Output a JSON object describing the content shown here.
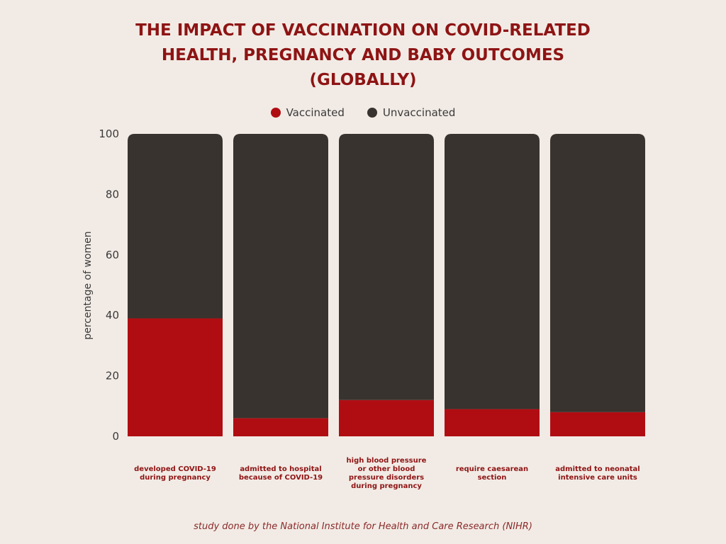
{
  "title_lines": [
    "THE IMPACT OF VACCINATION ON COVID-RELATED",
    "HEALTH, PREGNANCY AND BABY OUTCOMES",
    "(GLOBALLY)"
  ],
  "footnote": "study done by the National Institute for Health and Care Research (NIHR)",
  "colors": {
    "background": "#f2ebe5",
    "title": "#8e1414",
    "category_label": "#8e1414"
  },
  "chart_data": {
    "type": "bar",
    "stacked": true,
    "categories": [
      [
        "developed COVID-19",
        "during pregnancy"
      ],
      [
        "admitted to hospital",
        "because of COVID-19"
      ],
      [
        "high blood pressure",
        "or other blood",
        "pressure disorders",
        "during pregnancy"
      ],
      [
        "require caesarean",
        "section"
      ],
      [
        "admitted to neonatal",
        "intensive care units"
      ]
    ],
    "series": [
      {
        "name": "Vaccinated",
        "color": "#b00d12",
        "values": [
          39,
          6,
          12,
          9,
          8
        ]
      },
      {
        "name": "Unvaccinated",
        "color": "#38332e",
        "values": [
          61,
          94,
          88,
          91,
          92
        ]
      }
    ],
    "ylabel": "percentage of women",
    "ylim": [
      0,
      100
    ],
    "yticks": [
      0,
      20,
      40,
      60,
      80,
      100
    ],
    "grid": false,
    "legend_position": "top"
  }
}
